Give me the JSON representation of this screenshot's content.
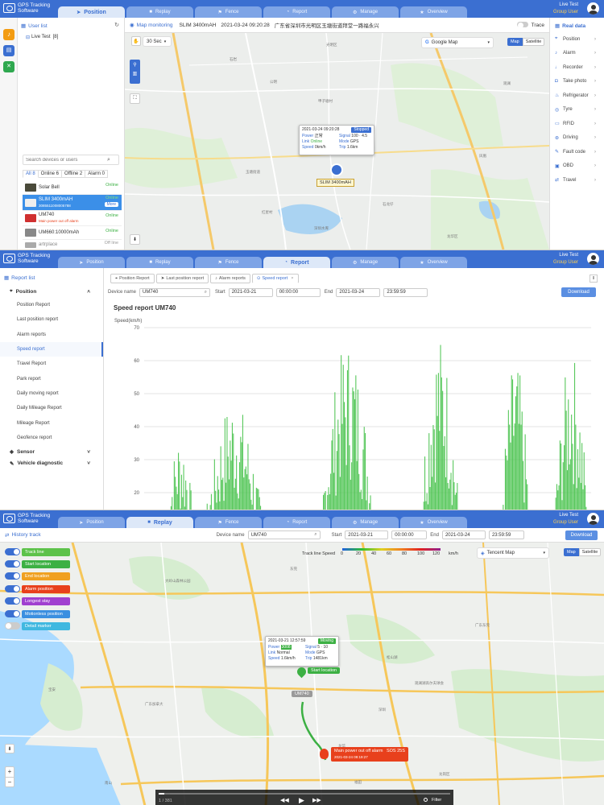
{
  "app": {
    "logo_line1": "GPS Tracking",
    "logo_line2": "Software",
    "user_name": "Live Test",
    "user_role": "Group User"
  },
  "colors": {
    "header": "#3b6fd1",
    "accent": "#3b6fd1",
    "online": "#3cb043",
    "chart_bar": "#46c24a",
    "alarm": "#e8401c"
  },
  "panel1": {
    "tabs": [
      {
        "label": "Position",
        "icon": "location-arrow-icon",
        "active": true
      },
      {
        "label": "Replay",
        "icon": "video-icon",
        "active": false
      },
      {
        "label": "Fence",
        "icon": "flag-icon",
        "active": false
      },
      {
        "label": "Report",
        "icon": "chart-icon",
        "active": false
      },
      {
        "label": "Manage",
        "icon": "gear-icon",
        "active": false
      },
      {
        "label": "Overview",
        "icon": "star-icon",
        "active": false
      }
    ],
    "user_list_title": "User list",
    "tree_item": "Live Test",
    "tree_count": "[8]",
    "search_placeholder": "Search devices or users",
    "filter_tabs": [
      "All 8",
      "Online 6",
      "Offline 2",
      "Alarm 0"
    ],
    "devices": [
      {
        "name": "Solar Bell",
        "status": "Online",
        "sub": ""
      },
      {
        "name": "SLIM 3400mAH",
        "status": "Online",
        "sub": "3085511008005788",
        "more": "More"
      },
      {
        "name": "UM740",
        "status": "Online",
        "sub": "Main power out off alarm"
      },
      {
        "name": "UM660:10000mAh",
        "status": "Online",
        "sub": ""
      },
      {
        "name": "artrplace",
        "status": "Off line",
        "sub": ""
      }
    ],
    "map_title": "Map monitoring",
    "map_device": "SLIM 3400mAH",
    "map_time": "2021-03-24 09:20:28",
    "map_address": "广东省深圳市光明区玉塘街道拜堂一路福永兴",
    "trace_label": "Trace",
    "refresh_select": "30 Sec",
    "map_type": "Google Map",
    "map_buttons": [
      "Map",
      "Satellite"
    ],
    "popup": {
      "time": "2021-03-24 09:20:28",
      "state": "Stopped",
      "power_label": "Power",
      "power": "正常",
      "signal_label": "Signal",
      "signal": "100 · 4.5",
      "link_label": "Link",
      "link": "Online",
      "mode_label": "Mode",
      "mode": "GPS",
      "speed_label": "Speed",
      "speed": "0km/h",
      "trip_label": "Trip",
      "trip": "1.6km"
    },
    "marker_label": "SLIM 3400mAH",
    "map_places": [
      "光明区",
      "石岩",
      "公明",
      "甲子塘村",
      "玉塘街道",
      "红星村",
      "深圳水库",
      "龙华区",
      "凤凰",
      "石龙仔",
      "观澜"
    ],
    "realdata_title": "Real data",
    "realdata_items": [
      {
        "label": "Position",
        "icon": "pin-icon"
      },
      {
        "label": "Alarm",
        "icon": "bell-icon"
      },
      {
        "label": "Recorder",
        "icon": "mic-icon"
      },
      {
        "label": "Take photo",
        "icon": "camera-icon"
      },
      {
        "label": "Refrigerator",
        "icon": "thermometer-icon"
      },
      {
        "label": "Tyre",
        "icon": "tyre-icon"
      },
      {
        "label": "RFID",
        "icon": "card-icon"
      },
      {
        "label": "Driving",
        "icon": "steering-icon"
      },
      {
        "label": "Fault code",
        "icon": "wrench-icon"
      },
      {
        "label": "OBD",
        "icon": "obd-icon"
      },
      {
        "label": "Travel",
        "icon": "route-icon"
      }
    ]
  },
  "panel2": {
    "tabs": [
      {
        "label": "Position",
        "icon": "location-arrow-icon",
        "active": false
      },
      {
        "label": "Replay",
        "icon": "video-icon",
        "active": false
      },
      {
        "label": "Fence",
        "icon": "flag-icon",
        "active": false
      },
      {
        "label": "Report",
        "icon": "chart-icon",
        "active": true
      },
      {
        "label": "Manage",
        "icon": "gear-icon",
        "active": false
      },
      {
        "label": "Overview",
        "icon": "star-icon",
        "active": false
      }
    ],
    "report_list_title": "Report list",
    "group_position": "Position",
    "reports": [
      "Position Report",
      "Last position report",
      "Alarm reports",
      "Speed report",
      "Travel Report",
      "Park report",
      "Daily moving report",
      "Daily Mileage Report",
      "Mileage Report",
      "Geofence report"
    ],
    "selected_report": "Speed report",
    "group_sensor": "Sensor",
    "group_diag": "Vehicle diagnostic",
    "open_tabs": [
      "Position Report",
      "Last position report",
      "Alarm reports",
      "Speed report"
    ],
    "device_label": "Device name",
    "device_value": "UM740",
    "start_label": "Start",
    "start_date": "2021-03-21",
    "start_time": "00:00:00",
    "end_label": "End",
    "end_date": "2021-03-24",
    "end_time": "23:59:59",
    "download": "Download"
  },
  "chart_data": {
    "type": "area",
    "title": "Speed report  UM740",
    "ylabel": "Speed(km/h)",
    "xlabel": "",
    "ylim": [
      0,
      70
    ],
    "yticks": [
      20,
      30,
      40,
      50,
      60,
      70
    ],
    "grid": true,
    "bursts": [
      {
        "x_start": 0.05,
        "x_end": 0.11,
        "peak": 38
      },
      {
        "x_start": 0.14,
        "x_end": 0.26,
        "peak": 49
      },
      {
        "x_start": 0.4,
        "x_end": 0.51,
        "peak": 66
      },
      {
        "x_start": 0.62,
        "x_end": 0.7,
        "peak": 68
      },
      {
        "x_start": 0.8,
        "x_end": 0.86,
        "peak": 61
      },
      {
        "x_start": 0.92,
        "x_end": 0.99,
        "peak": 63
      }
    ]
  },
  "panel3": {
    "tabs": [
      {
        "label": "Position",
        "icon": "location-arrow-icon",
        "active": false
      },
      {
        "label": "Replay",
        "icon": "video-icon",
        "active": true
      },
      {
        "label": "Fence",
        "icon": "flag-icon",
        "active": false
      },
      {
        "label": "Report",
        "icon": "chart-icon",
        "active": false
      },
      {
        "label": "Manage",
        "icon": "gear-icon",
        "active": false
      },
      {
        "label": "Overview",
        "icon": "star-icon",
        "active": false
      }
    ],
    "history_title": "History track",
    "device_label": "Device name",
    "device_value": "UM740",
    "start_label": "Start",
    "start_date": "2021-03-21",
    "start_time": "00:00:00",
    "end_label": "End",
    "end_date": "2021-03-24",
    "end_time": "23:59:59",
    "download": "Download",
    "toggles": [
      {
        "label": "Track line",
        "color": "#5dc24a",
        "on": true
      },
      {
        "label": "Start location",
        "color": "#3cb043",
        "on": true
      },
      {
        "label": "End location",
        "color": "#f0a020",
        "on": true
      },
      {
        "label": "Alarm position",
        "color": "#e8401c",
        "on": true
      },
      {
        "label": "Longest stay",
        "color": "#a040d0",
        "on": true
      },
      {
        "label": "Motionless position",
        "color": "#3b8fe0",
        "on": true
      },
      {
        "label": "Detail marker",
        "color": "#40b8e0",
        "on": false
      }
    ],
    "legend_title": "Track line Speed",
    "legend_ticks": [
      "0",
      "20",
      "40",
      "60",
      "80",
      "100",
      "120"
    ],
    "legend_unit": "km/h",
    "map_type": "Tencent Map",
    "map_buttons": [
      "Map",
      "Satellite"
    ],
    "popup": {
      "time": "2021-03-21 12:57:59",
      "state": "Moving",
      "power_label": "Power",
      "power": "3008",
      "signal_label": "Signal",
      "signal": "5 · 10",
      "link_label": "Link",
      "link": "Normal",
      "mode_label": "Mode",
      "mode": "GPS",
      "speed_label": "Speed",
      "speed": "1.6km/h",
      "trip_label": "Trip",
      "trip": "1481km"
    },
    "start_flag": "Start location",
    "device_marker": "UM740",
    "alarm_title": "Main power out off alarm",
    "alarm_code": "SOS 25S",
    "alarm_time": "2021-03-24 09:19:27",
    "map_places": [
      "大岭山森林公园",
      "广东东莞",
      "松山湖",
      "观澜湖高尔夫球会",
      "广东加拿大",
      "深圳",
      "龙华",
      "宝安",
      "南山",
      "龙岗区",
      "福田",
      "东莞"
    ],
    "playback_count": "1 / 381",
    "filter_label": "Filter"
  }
}
